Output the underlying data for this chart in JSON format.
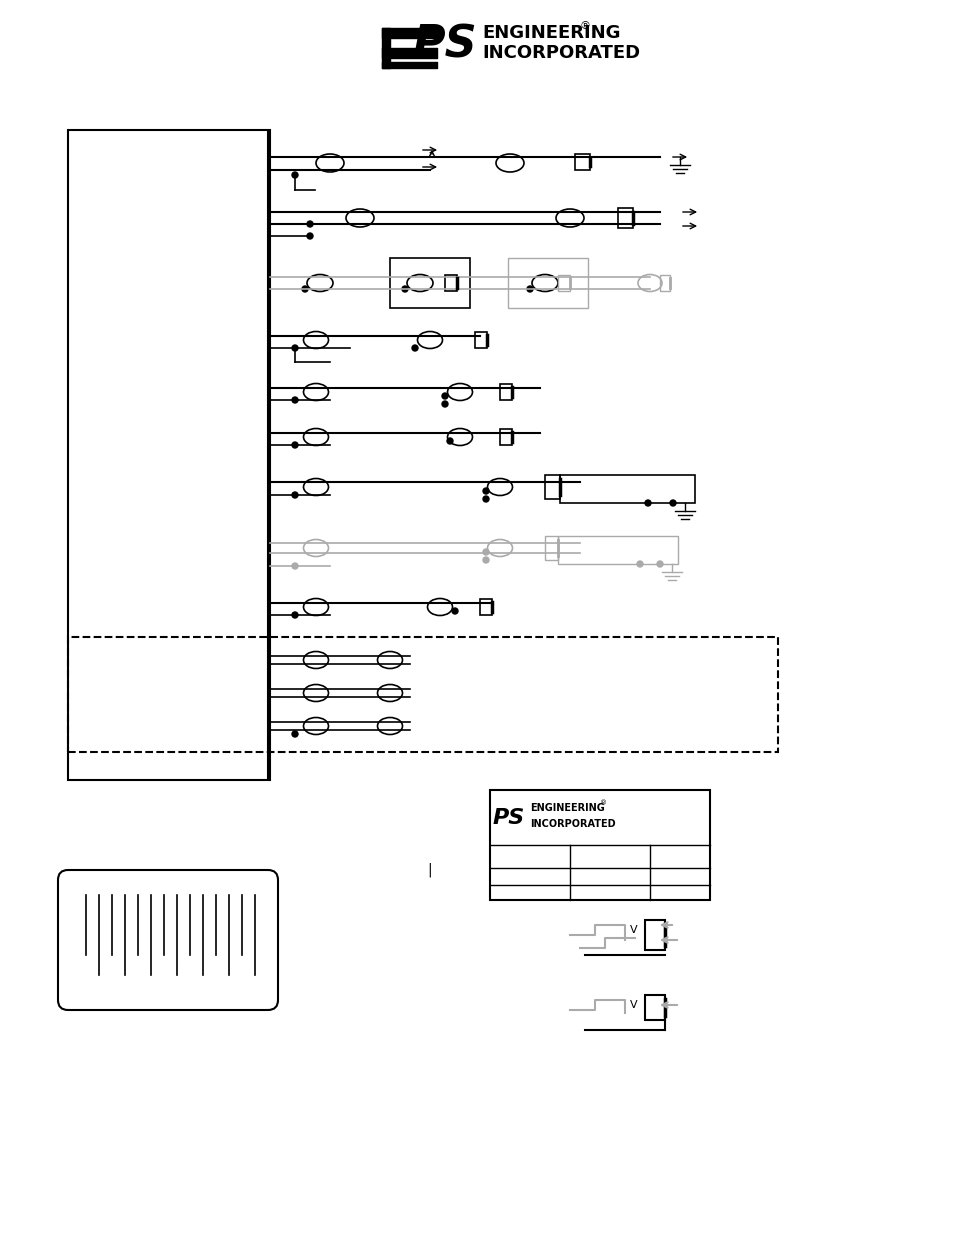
{
  "bg_color": "#ffffff",
  "line_color": "#000000",
  "gray_color": "#aaaaaa",
  "light_gray": "#cccccc",
  "title": "PS ENGINEERING\nINCORPORATED",
  "logo_text_line1": "ENGINEERING",
  "logo_text_line2": "INCORPORATED",
  "fig_width": 9.54,
  "fig_height": 12.35
}
